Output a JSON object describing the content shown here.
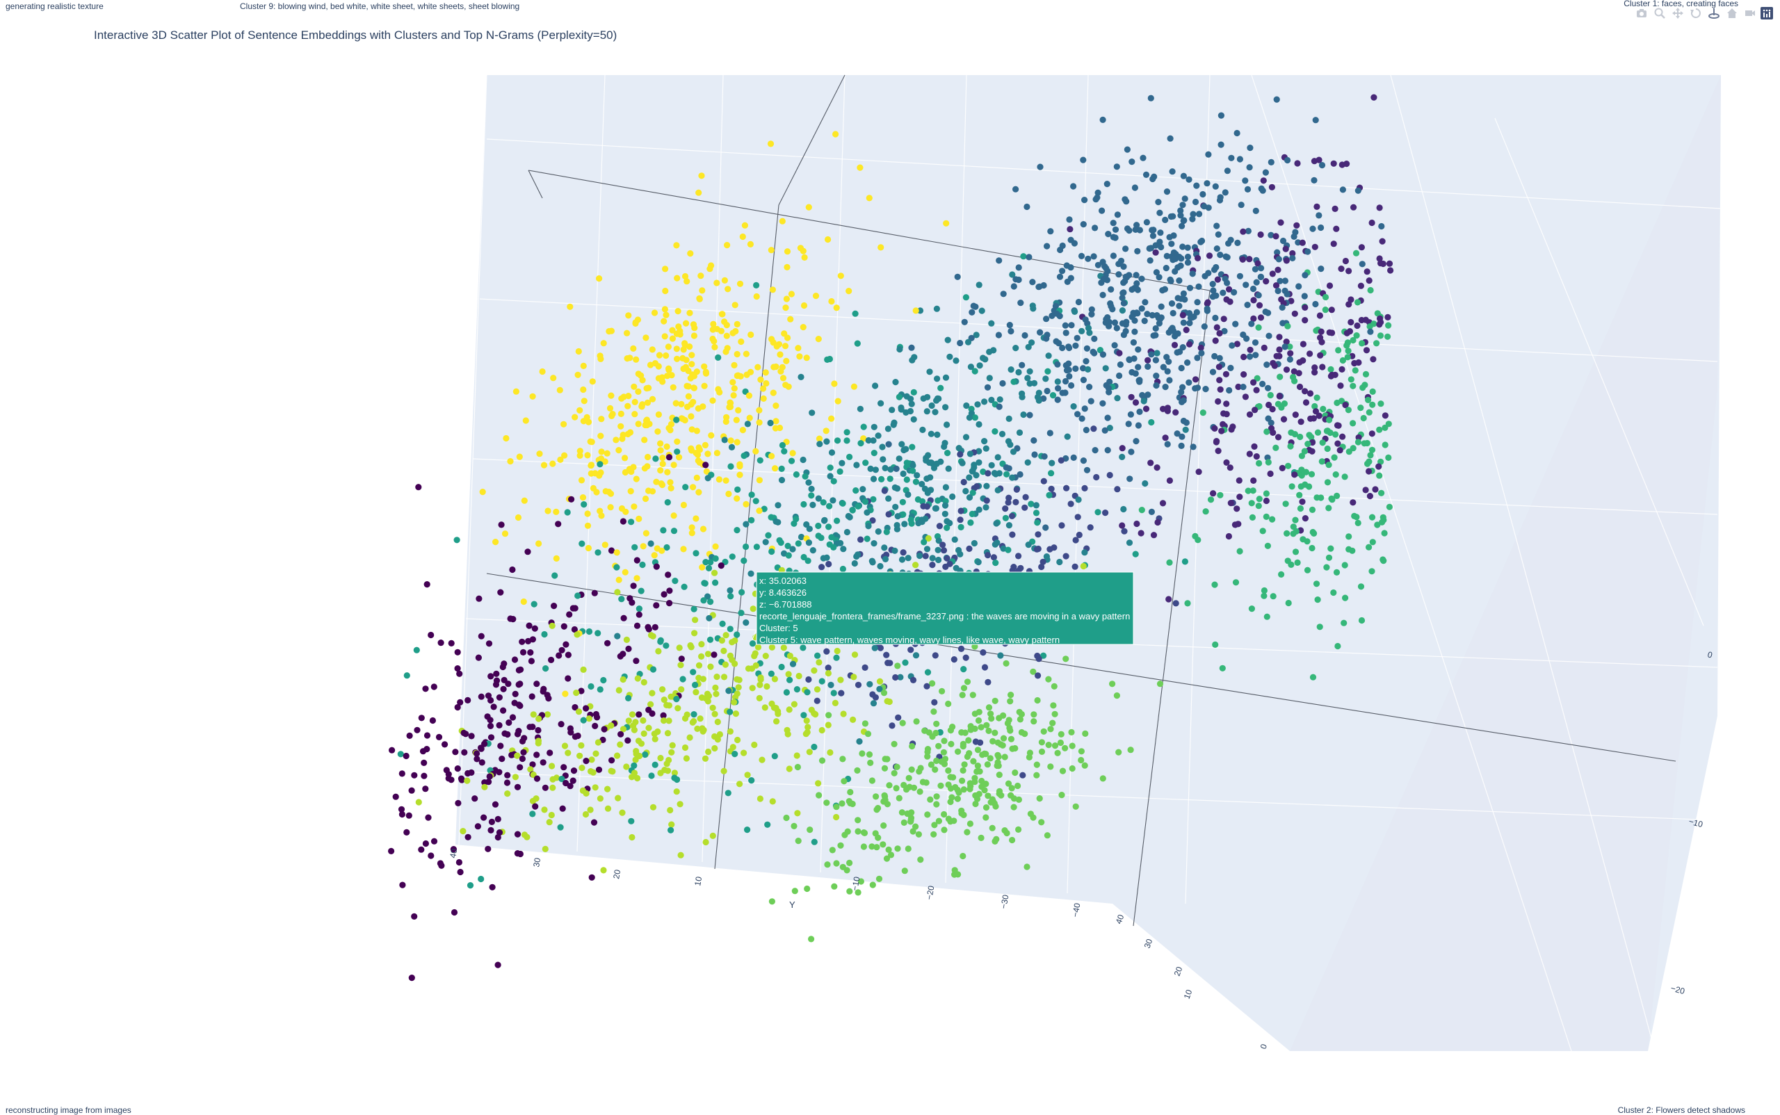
{
  "page": {
    "title": "Interactive 3D Scatter Plot of Sentence Embeddings with Clusters and Top N-Grams (Perplexity=50)",
    "corner_labels": {
      "top_left": "generating realistic texture",
      "top_center": "Cluster 9: blowing wind, bed white, white sheet, white sheets, sheet blowing",
      "top_right": "Cluster 1: faces, creating faces",
      "bottom_left": "reconstructing image from images",
      "bottom_right": "Cluster 2: Flowers detect shadows"
    }
  },
  "modebar": {
    "icons": [
      "camera-icon",
      "zoom-icon",
      "pan-icon",
      "orbit-icon",
      "turntable-icon",
      "home-icon",
      "camera-view-icon",
      "plotly-logo-icon"
    ]
  },
  "chart_data": {
    "type": "scatter",
    "subtype": "3d",
    "title": "Interactive 3D Scatter Plot of Sentence Embeddings with Clusters and Top N-Grams (Perplexity=50)",
    "colorscale": "viridis",
    "axes": {
      "x": {
        "label": "",
        "ticks": [
          0,
          10,
          20,
          30,
          40
        ],
        "range": [
          -5,
          45
        ]
      },
      "y": {
        "label": "Y",
        "ticks": [
          40,
          30,
          20,
          10,
          0,
          -10,
          -20,
          -30,
          -40
        ],
        "range": [
          -45,
          45
        ]
      },
      "z": {
        "label": "",
        "ticks": [
          0,
          -10,
          -20
        ],
        "range": [
          -25,
          5
        ]
      }
    },
    "clusters": [
      {
        "id": 0,
        "color": "#440154"
      },
      {
        "id": 1,
        "color": "#482878"
      },
      {
        "id": 2,
        "color": "#3e4989"
      },
      {
        "id": 3,
        "color": "#31688e"
      },
      {
        "id": 4,
        "color": "#26828e"
      },
      {
        "id": 5,
        "color": "#1f9e89"
      },
      {
        "id": 6,
        "color": "#35b779"
      },
      {
        "id": 7,
        "color": "#6ece58"
      },
      {
        "id": 8,
        "color": "#b5de2b"
      },
      {
        "id": 9,
        "color": "#fde725"
      }
    ],
    "hover": {
      "x": "x: 35.02063",
      "y": "y: 8.463626",
      "z": "z: −6.701888",
      "text": "recorte_lenguaje_frontera_frames/frame_3237.png : the waves are moving in a wavy pattern",
      "cluster": "Cluster: 5",
      "ngrams": "Cluster 5: wave pattern, waves moving, wavy lines, like wave, wavy pattern",
      "color": "#1f9e89"
    }
  }
}
